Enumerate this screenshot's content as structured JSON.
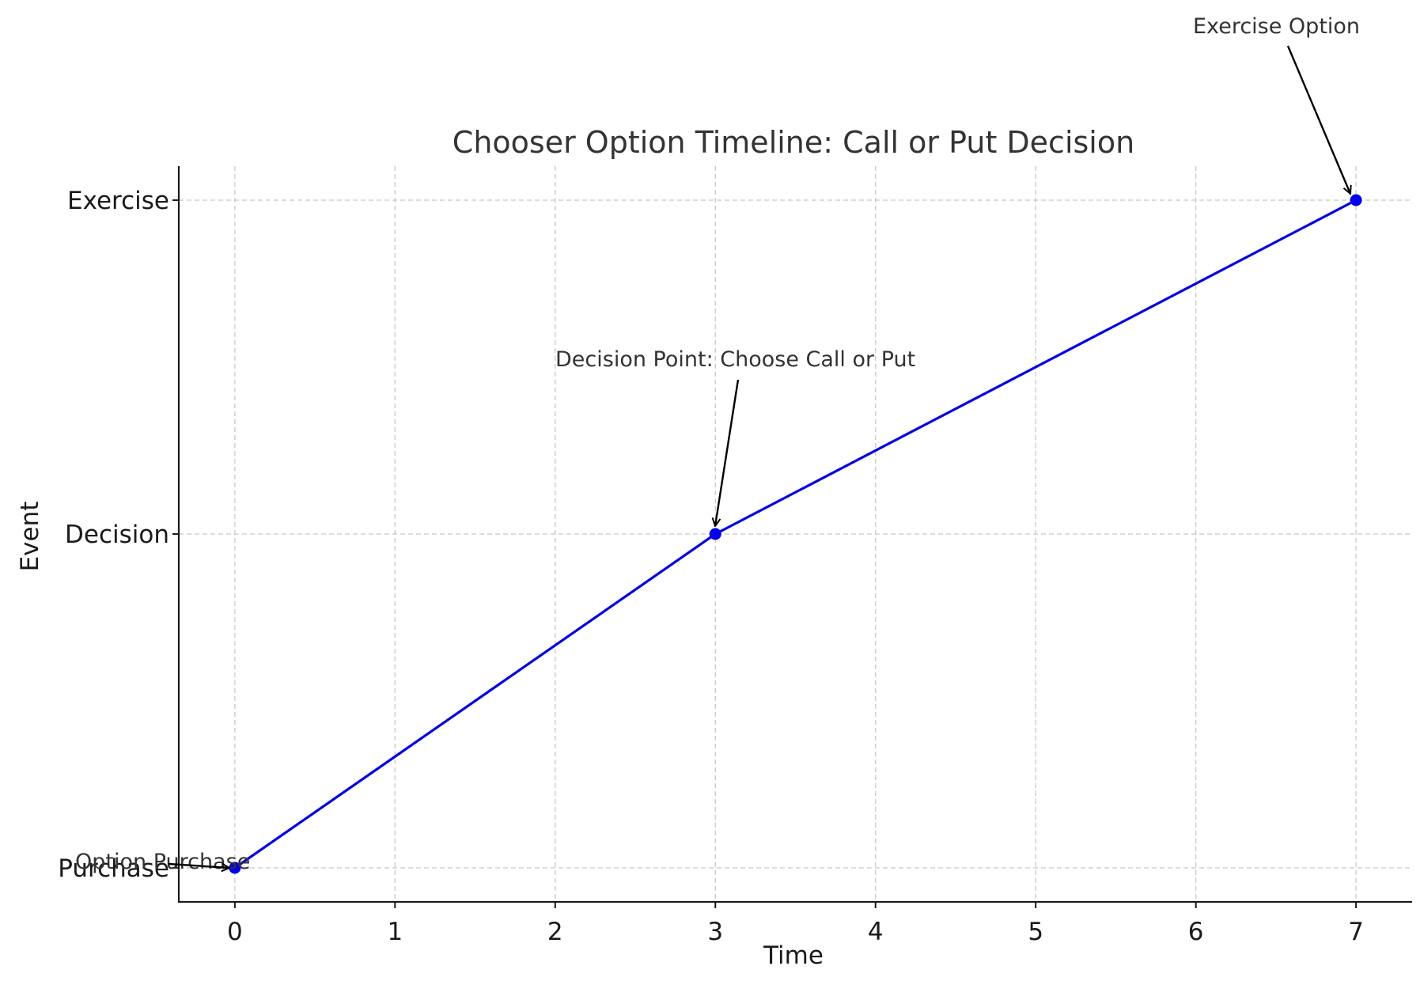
{
  "chart_data": {
    "type": "line",
    "title": "Chooser Option Timeline: Call or Put Decision",
    "xlabel": "Time",
    "ylabel": "Event",
    "x_ticks": [
      "0",
      "1",
      "2",
      "3",
      "4",
      "5",
      "6",
      "7"
    ],
    "y_categories": [
      "Purchase",
      "Decision",
      "Exercise"
    ],
    "xlim": [
      -0.35,
      7.35
    ],
    "grid": true,
    "series": [
      {
        "color": "#0000ee",
        "points": [
          {
            "x": 0,
            "y": "Purchase"
          },
          {
            "x": 3,
            "y": "Decision"
          },
          {
            "x": 7,
            "y": "Exercise"
          }
        ]
      }
    ],
    "annotations": [
      {
        "text": "Option Purchase",
        "x": 0,
        "y": "Purchase"
      },
      {
        "text": "Decision Point: Choose Call or Put",
        "x": 3,
        "y": "Decision"
      },
      {
        "text": "Exercise Option",
        "x": 7,
        "y": "Exercise"
      }
    ]
  }
}
